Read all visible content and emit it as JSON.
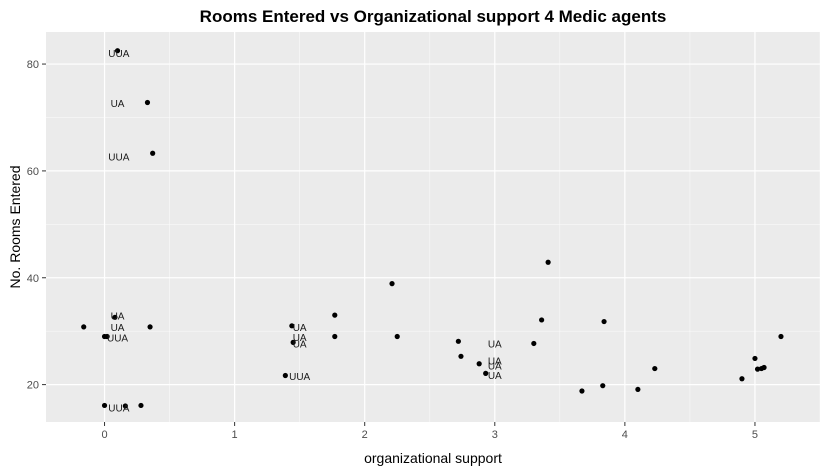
{
  "chart_data": {
    "type": "scatter",
    "title": "Rooms Entered vs Organizational support 4 Medic agents",
    "xlabel": "organizational support",
    "ylabel": "No. Rooms Entered",
    "xlim": [
      -0.45,
      5.5
    ],
    "ylim": [
      13,
      86
    ],
    "x_ticks": [
      0,
      1,
      2,
      3,
      4,
      5
    ],
    "y_ticks": [
      20,
      40,
      60,
      80
    ],
    "grid": true,
    "background": "#ebebeb",
    "grid_color": "#ffffff",
    "point_color": "#000000",
    "points": [
      {
        "x": 0.1,
        "y": 82.5
      },
      {
        "x": 0.33,
        "y": 72.8
      },
      {
        "x": 0.37,
        "y": 63.3
      },
      {
        "x": -0.16,
        "y": 30.8
      },
      {
        "x": 0.0,
        "y": 29.0
      },
      {
        "x": 0.02,
        "y": 29.0
      },
      {
        "x": 0.08,
        "y": 32.6
      },
      {
        "x": 0.35,
        "y": 30.8
      },
      {
        "x": 0.0,
        "y": 16.1
      },
      {
        "x": 0.16,
        "y": 16.0
      },
      {
        "x": 0.28,
        "y": 16.1
      },
      {
        "x": 1.44,
        "y": 31.0
      },
      {
        "x": 1.45,
        "y": 27.9
      },
      {
        "x": 1.39,
        "y": 21.7
      },
      {
        "x": 1.77,
        "y": 33.0
      },
      {
        "x": 1.77,
        "y": 29.0
      },
      {
        "x": 2.21,
        "y": 38.9
      },
      {
        "x": 2.25,
        "y": 29.0
      },
      {
        "x": 2.72,
        "y": 28.1
      },
      {
        "x": 2.74,
        "y": 25.3
      },
      {
        "x": 2.88,
        "y": 23.9
      },
      {
        "x": 2.93,
        "y": 22.1
      },
      {
        "x": 3.3,
        "y": 27.7
      },
      {
        "x": 3.36,
        "y": 32.1
      },
      {
        "x": 3.41,
        "y": 42.9
      },
      {
        "x": 3.67,
        "y": 18.8
      },
      {
        "x": 3.83,
        "y": 19.8
      },
      {
        "x": 3.84,
        "y": 31.8
      },
      {
        "x": 4.1,
        "y": 19.1
      },
      {
        "x": 4.23,
        "y": 23.0
      },
      {
        "x": 4.9,
        "y": 21.1
      },
      {
        "x": 5.0,
        "y": 24.9
      },
      {
        "x": 5.02,
        "y": 22.9
      },
      {
        "x": 5.05,
        "y": 23.0
      },
      {
        "x": 5.07,
        "y": 23.2
      },
      {
        "x": 5.2,
        "y": 29.0
      }
    ],
    "annotations": [
      {
        "x": 0.11,
        "y": 82.0,
        "text": "UUA"
      },
      {
        "x": 0.1,
        "y": 72.6,
        "text": "UA"
      },
      {
        "x": 0.11,
        "y": 62.6,
        "text": "UUA"
      },
      {
        "x": 0.1,
        "y": 32.8,
        "text": "UA"
      },
      {
        "x": 0.1,
        "y": 30.7,
        "text": "UA"
      },
      {
        "x": 0.1,
        "y": 28.7,
        "text": "UUA"
      },
      {
        "x": 0.11,
        "y": 15.6,
        "text": "UUA"
      },
      {
        "x": 1.5,
        "y": 30.7,
        "text": "UA"
      },
      {
        "x": 1.5,
        "y": 28.8,
        "text": "UA"
      },
      {
        "x": 1.5,
        "y": 27.6,
        "text": "UA"
      },
      {
        "x": 1.5,
        "y": 21.5,
        "text": "UUA"
      },
      {
        "x": 3.0,
        "y": 27.6,
        "text": "UA"
      },
      {
        "x": 3.0,
        "y": 24.4,
        "text": "UA"
      },
      {
        "x": 3.0,
        "y": 23.5,
        "text": "UA"
      },
      {
        "x": 3.0,
        "y": 21.7,
        "text": "UA"
      }
    ]
  }
}
